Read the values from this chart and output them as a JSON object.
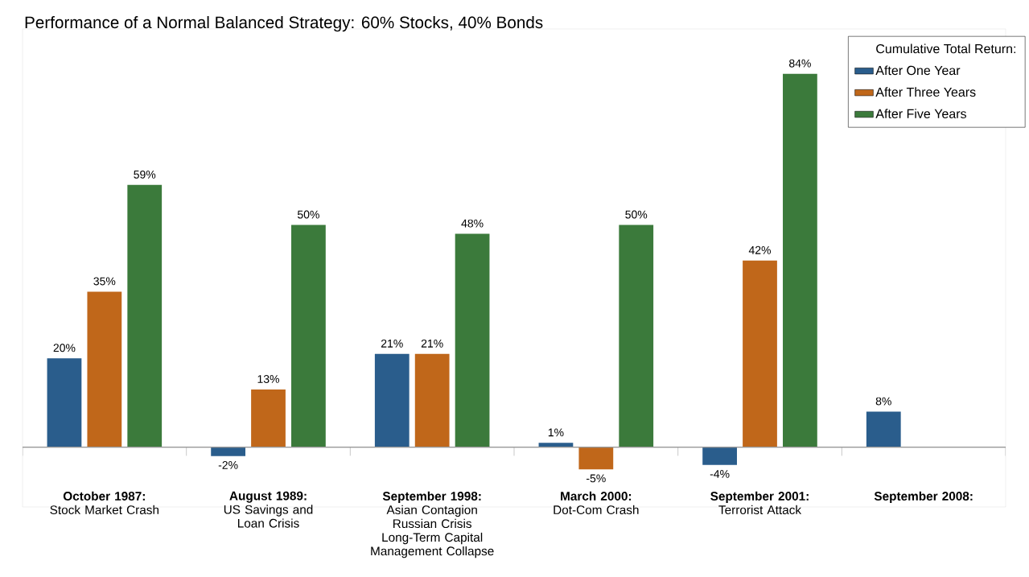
{
  "chart_data": {
    "type": "bar",
    "title": "Performance of a Normal Balanced Strategy: 60% Stocks, 40% Bonds",
    "categories": [
      "**October 1987:**\nStock Market Crash",
      "**August 1989:**\nUS Savings and\nLoan Crisis",
      "**September 1998:**\nAsian Contagion\nRussian Crisis\nLong-Term Capital\nManagement Collapse",
      "**March 2000:**\nDot-Com Crash",
      "**September 2001:**\nTerrorist Attack",
      "**September 2008:**"
    ],
    "legend_title": "Cumulative Total Return:",
    "series": [
      {
        "name": "After One Year",
        "color": "#2a5d8c",
        "values": [
          20,
          -2,
          21,
          1,
          -4,
          8
        ],
        "value_labels": [
          "20%",
          "-2%",
          "21%",
          "1%",
          "-4%",
          "8%"
        ]
      },
      {
        "name": "After Three Years",
        "color": "#c0671a",
        "values": [
          35,
          13,
          21,
          -5,
          42,
          null
        ],
        "value_labels": [
          "35%",
          "13%",
          "21%",
          "-5%",
          "42%",
          null
        ]
      },
      {
        "name": "After Five Years",
        "color": "#3b7a3b",
        "values": [
          59,
          50,
          48,
          50,
          84,
          null
        ],
        "value_labels": [
          "59%",
          "50%",
          "48%",
          "50%",
          "84%",
          null
        ]
      }
    ],
    "legend": "top right"
  }
}
